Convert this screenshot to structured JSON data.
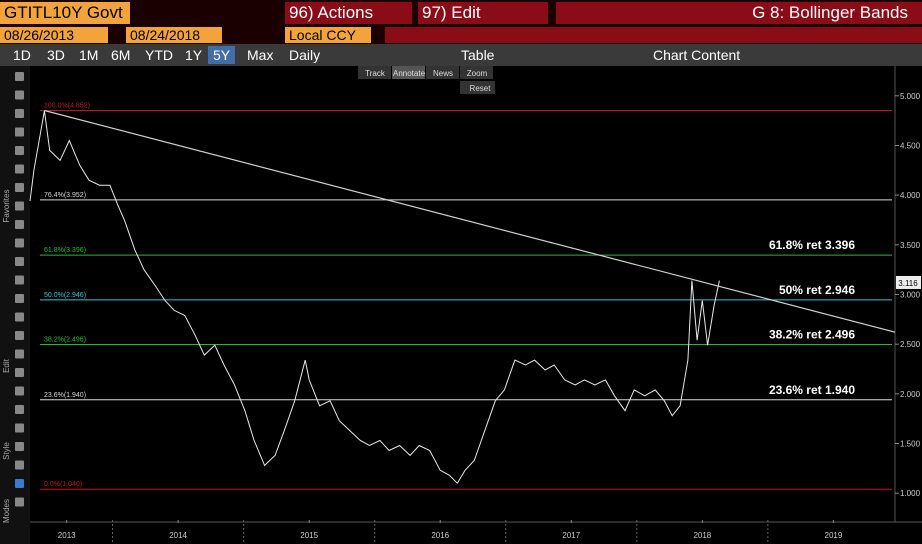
{
  "toolbar": {
    "ticker": "GTITL10Y Govt",
    "actions": "96) Actions",
    "edit": "97) Edit",
    "function_title": "G 8: Bollinger Bands",
    "start_date": "08/26/2013",
    "end_date": "08/24/2018",
    "currency": "Local CCY",
    "periods": [
      "1D",
      "3D",
      "1M",
      "6M",
      "YTD",
      "1Y",
      "5Y",
      "Max"
    ],
    "selected_period": "5Y",
    "frequency": "Daily",
    "table": "Table",
    "chart_content": "Chart Content",
    "chart_tools": [
      "Track",
      "Annotate",
      "News",
      "Zoom"
    ],
    "reset": "Reset",
    "side_labels": [
      "Favorites",
      "Edit",
      "Style",
      "Modes"
    ]
  },
  "chart_data": {
    "type": "line",
    "xlim": [
      2013.37,
      2019.97
    ],
    "xticks": [
      {
        "value": 2013.65,
        "label": "2013"
      },
      {
        "value": 2014.5,
        "label": "2014"
      },
      {
        "value": 2015.5,
        "label": "2015"
      },
      {
        "value": 2016.5,
        "label": "2016"
      },
      {
        "value": 2017.5,
        "label": "2017"
      },
      {
        "value": 2018.5,
        "label": "2018"
      },
      {
        "value": 2019.5,
        "label": "2019"
      }
    ],
    "year_boundaries": [
      2014,
      2015,
      2016,
      2017,
      2018,
      2019
    ],
    "ylim": [
      0.73,
      5.3
    ],
    "yticks": [
      {
        "value": 1,
        "label": "1.000"
      },
      {
        "value": 1.5,
        "label": "1.500"
      },
      {
        "value": 2,
        "label": "2.000"
      },
      {
        "value": 2.5,
        "label": "2.500"
      },
      {
        "value": 3,
        "label": "3.000"
      },
      {
        "value": 3.5,
        "label": "3.500"
      },
      {
        "value": 4,
        "label": "4.000"
      },
      {
        "value": 4.5,
        "label": "4.500"
      },
      {
        "value": 5,
        "label": "5.000"
      }
    ],
    "series": [
      {
        "color": "#e8e8e8",
        "x": [
          2013.37,
          2013.4,
          2013.48,
          2013.52,
          2013.6,
          2013.67,
          2013.75,
          2013.82,
          2013.9,
          2013.98,
          2014.04,
          2014.09,
          2014.17,
          2014.24,
          2014.32,
          2014.4,
          2014.47,
          2014.55,
          2014.63,
          2014.7,
          2014.78,
          2014.85,
          2014.93,
          2015.01,
          2015.08,
          2015.16,
          2015.24,
          2015.31,
          2015.39,
          2015.47,
          2015.5,
          2015.58,
          2015.66,
          2015.73,
          2015.81,
          2015.89,
          2015.96,
          2016.04,
          2016.11,
          2016.19,
          2016.27,
          2016.34,
          2016.42,
          2016.5,
          2016.57,
          2016.63,
          2016.69,
          2016.76,
          2016.84,
          2016.92,
          2016.99,
          2017.07,
          2017.15,
          2017.22,
          2017.3,
          2017.37,
          2017.45,
          2017.53,
          2017.6,
          2017.68,
          2017.76,
          2017.83,
          2017.91,
          2017.98,
          2018.06,
          2018.14,
          2018.21,
          2018.27,
          2018.33,
          2018.39,
          2018.42,
          2018.46,
          2018.5,
          2018.54,
          2018.59,
          2018.63
        ],
        "values": [
          3.94,
          4.25,
          4.85,
          4.45,
          4.35,
          4.55,
          4.3,
          4.15,
          4.1,
          4.1,
          3.9,
          3.75,
          3.45,
          3.25,
          3.1,
          2.94,
          2.84,
          2.79,
          2.59,
          2.39,
          2.49,
          2.29,
          2.09,
          1.83,
          1.53,
          1.28,
          1.38,
          1.63,
          1.93,
          2.34,
          2.14,
          1.88,
          1.93,
          1.73,
          1.63,
          1.53,
          1.48,
          1.53,
          1.43,
          1.48,
          1.38,
          1.48,
          1.43,
          1.23,
          1.18,
          1.1,
          1.23,
          1.33,
          1.63,
          1.93,
          2.04,
          2.34,
          2.29,
          2.34,
          2.24,
          2.29,
          2.14,
          2.09,
          2.14,
          2.09,
          2.14,
          1.98,
          1.83,
          2.04,
          1.98,
          2.04,
          1.93,
          1.78,
          1.88,
          2.34,
          3.14,
          2.54,
          2.94,
          2.49,
          2.89,
          3.14
        ]
      },
      {
        "color": "#d0d0d0",
        "x": [
          2013.48,
          2019.97
        ],
        "values": [
          4.852,
          2.62
        ]
      }
    ],
    "levels": [
      {
        "label": "100.0%(4.852)",
        "value": 4.852,
        "color": "#c8101e"
      },
      {
        "label": "76.4%(3.952)",
        "value": 3.952,
        "color": "#d8d8d8"
      },
      {
        "label": "61.8%(3.396)",
        "value": 3.396,
        "color": "#1fc21f"
      },
      {
        "label": "50.0%(2.946)",
        "value": 2.946,
        "color": "#29c8d8"
      },
      {
        "label": "38.2%(2.496)",
        "value": 2.496,
        "color": "#1fc21f"
      },
      {
        "label": "23.6%(1.940)",
        "value": 1.94,
        "color": "#d8d8d8"
      },
      {
        "label": "0.0%(1.040)",
        "value": 1.04,
        "color": "#c8101e"
      }
    ],
    "annotations": [
      {
        "text": "61.8% ret 3.396",
        "value": 3.396
      },
      {
        "text": "50% ret 2.946",
        "value": 2.946
      },
      {
        "text": "38.2% ret 2.496",
        "value": 2.496
      },
      {
        "text": "23.6% ret 1.940",
        "value": 1.94
      }
    ],
    "last_value": 3.116
  }
}
